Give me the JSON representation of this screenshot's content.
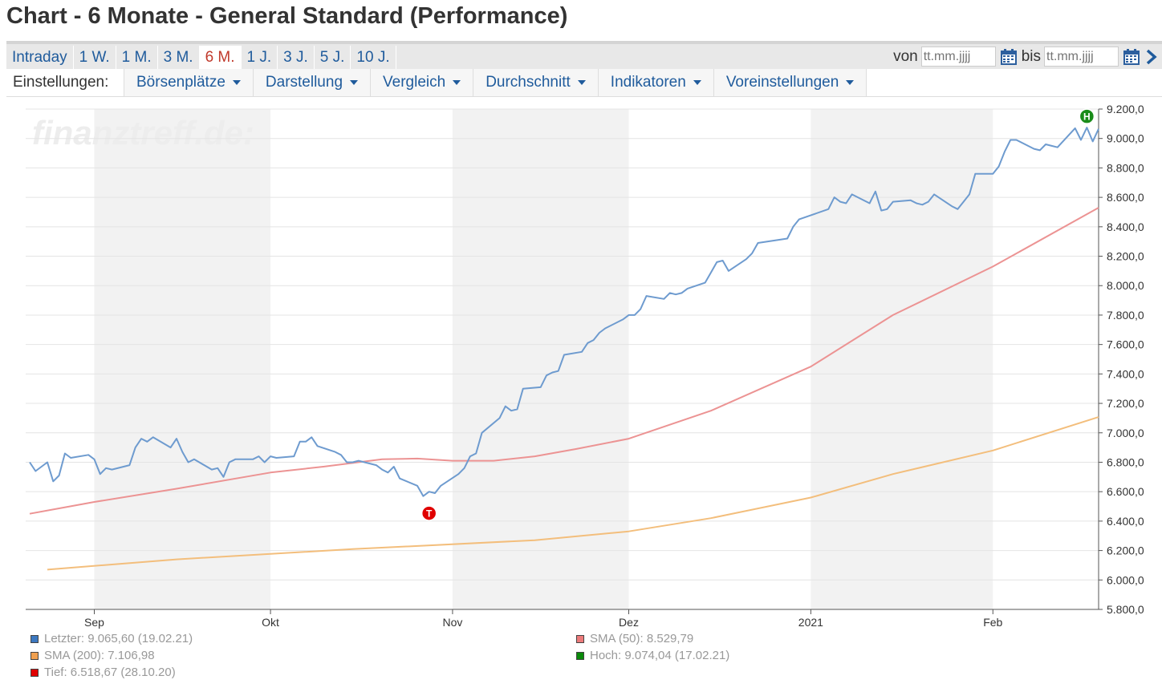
{
  "page": {
    "title": "Chart - 6 Monate - General Standard (Performance)"
  },
  "periods": {
    "tabs": [
      {
        "label": "Intraday",
        "active": false
      },
      {
        "label": "1 W.",
        "active": false
      },
      {
        "label": "1 M.",
        "active": false
      },
      {
        "label": "3 M.",
        "active": false
      },
      {
        "label": "6 M.",
        "active": true
      },
      {
        "label": "1 J.",
        "active": false
      },
      {
        "label": "3 J.",
        "active": false
      },
      {
        "label": "5 J.",
        "active": false
      },
      {
        "label": "10 J.",
        "active": false
      }
    ]
  },
  "date_range": {
    "from_label": "von",
    "from_placeholder": "tt.mm.jjjj",
    "to_label": "bis",
    "to_placeholder": "tt.mm.jjjj",
    "calendar_icon": "calendar-icon",
    "next_icon": "chevron-right-icon"
  },
  "settings": {
    "label": "Einstellungen:",
    "items": [
      "Börsenplätze",
      "Darstellung",
      "Vergleich",
      "Durchschnitt",
      "Indikatoren",
      "Voreinstellungen"
    ]
  },
  "chart_data": {
    "type": "line",
    "watermark": "finanztreff.de:",
    "x_range": [
      "2020-08-21",
      "2021-02-19"
    ],
    "ylim": [
      5800,
      9200
    ],
    "yticks": [
      5800,
      6000,
      6200,
      6400,
      6600,
      6800,
      7000,
      7200,
      7400,
      7600,
      7800,
      8000,
      8200,
      8400,
      8600,
      8800,
      9000,
      9200
    ],
    "ytick_labels": [
      "5.800,0",
      "6.000,0",
      "6.200,0",
      "6.400,0",
      "6.600,0",
      "6.800,0",
      "7.000,0",
      "7.200,0",
      "7.400,0",
      "7.600,0",
      "7.800,0",
      "8.000,0",
      "8.200,0",
      "8.400,0",
      "8.600,0",
      "8.800,0",
      "9.000,0",
      "9.200,0"
    ],
    "x_ticks": [
      {
        "date": "2020-09-01",
        "label": "Sep"
      },
      {
        "date": "2020-10-01",
        "label": "Okt"
      },
      {
        "date": "2020-11-01",
        "label": "Nov"
      },
      {
        "date": "2020-12-01",
        "label": "Dez"
      },
      {
        "date": "2021-01-01",
        "label": "2021"
      },
      {
        "date": "2021-02-01",
        "label": "Feb"
      }
    ],
    "shaded_months": [
      [
        "2020-09-01",
        "2020-10-01"
      ],
      [
        "2020-11-01",
        "2020-12-01"
      ],
      [
        "2021-01-01",
        "2021-02-01"
      ]
    ],
    "grid": true,
    "colors": {
      "price": "#6e9bcf",
      "sma50": "#ec9393",
      "sma200": "#f3be7c",
      "low": "#e00000",
      "high": "#1a8c1a",
      "shade": "#f2f2f2",
      "grid": "#e4e4e4"
    },
    "series": [
      {
        "name": "Letzter",
        "color": "#6e9bcf",
        "points": [
          [
            "2020-08-21",
            6800
          ],
          [
            "2020-08-22",
            6740
          ],
          [
            "2020-08-24",
            6800
          ],
          [
            "2020-08-25",
            6670
          ],
          [
            "2020-08-26",
            6710
          ],
          [
            "2020-08-27",
            6860
          ],
          [
            "2020-08-28",
            6830
          ],
          [
            "2020-08-31",
            6850
          ],
          [
            "2020-09-01",
            6820
          ],
          [
            "2020-09-02",
            6720
          ],
          [
            "2020-09-03",
            6760
          ],
          [
            "2020-09-04",
            6750
          ],
          [
            "2020-09-07",
            6780
          ],
          [
            "2020-09-08",
            6900
          ],
          [
            "2020-09-09",
            6960
          ],
          [
            "2020-09-10",
            6940
          ],
          [
            "2020-09-11",
            6970
          ],
          [
            "2020-09-14",
            6900
          ],
          [
            "2020-09-15",
            6960
          ],
          [
            "2020-09-16",
            6870
          ],
          [
            "2020-09-17",
            6800
          ],
          [
            "2020-09-18",
            6820
          ],
          [
            "2020-09-21",
            6750
          ],
          [
            "2020-09-22",
            6760
          ],
          [
            "2020-09-23",
            6700
          ],
          [
            "2020-09-24",
            6800
          ],
          [
            "2020-09-25",
            6820
          ],
          [
            "2020-09-28",
            6820
          ],
          [
            "2020-09-29",
            6840
          ],
          [
            "2020-09-30",
            6800
          ],
          [
            "2020-10-01",
            6840
          ],
          [
            "2020-10-02",
            6830
          ],
          [
            "2020-10-05",
            6840
          ],
          [
            "2020-10-06",
            6940
          ],
          [
            "2020-10-07",
            6940
          ],
          [
            "2020-10-08",
            6970
          ],
          [
            "2020-10-09",
            6910
          ],
          [
            "2020-10-12",
            6870
          ],
          [
            "2020-10-13",
            6850
          ],
          [
            "2020-10-14",
            6800
          ],
          [
            "2020-10-15",
            6800
          ],
          [
            "2020-10-16",
            6810
          ],
          [
            "2020-10-19",
            6780
          ],
          [
            "2020-10-20",
            6750
          ],
          [
            "2020-10-21",
            6730
          ],
          [
            "2020-10-22",
            6770
          ],
          [
            "2020-10-23",
            6690
          ],
          [
            "2020-10-26",
            6640
          ],
          [
            "2020-10-27",
            6570
          ],
          [
            "2020-10-28",
            6600
          ],
          [
            "2020-10-29",
            6590
          ],
          [
            "2020-10-30",
            6640
          ],
          [
            "2020-11-02",
            6720
          ],
          [
            "2020-11-03",
            6760
          ],
          [
            "2020-11-04",
            6840
          ],
          [
            "2020-11-05",
            6860
          ],
          [
            "2020-11-06",
            7000
          ],
          [
            "2020-11-09",
            7100
          ],
          [
            "2020-11-10",
            7180
          ],
          [
            "2020-11-11",
            7150
          ],
          [
            "2020-11-12",
            7160
          ],
          [
            "2020-11-13",
            7300
          ],
          [
            "2020-11-16",
            7310
          ],
          [
            "2020-11-17",
            7390
          ],
          [
            "2020-11-18",
            7410
          ],
          [
            "2020-11-19",
            7420
          ],
          [
            "2020-11-20",
            7530
          ],
          [
            "2020-11-23",
            7550
          ],
          [
            "2020-11-24",
            7610
          ],
          [
            "2020-11-25",
            7630
          ],
          [
            "2020-11-26",
            7680
          ],
          [
            "2020-11-27",
            7710
          ],
          [
            "2020-11-30",
            7770
          ],
          [
            "2020-12-01",
            7800
          ],
          [
            "2020-12-02",
            7800
          ],
          [
            "2020-12-03",
            7840
          ],
          [
            "2020-12-04",
            7930
          ],
          [
            "2020-12-07",
            7910
          ],
          [
            "2020-12-08",
            7950
          ],
          [
            "2020-12-09",
            7940
          ],
          [
            "2020-12-10",
            7950
          ],
          [
            "2020-12-11",
            7980
          ],
          [
            "2020-12-14",
            8020
          ],
          [
            "2020-12-15",
            8090
          ],
          [
            "2020-12-16",
            8160
          ],
          [
            "2020-12-17",
            8170
          ],
          [
            "2020-12-18",
            8100
          ],
          [
            "2020-12-21",
            8180
          ],
          [
            "2020-12-22",
            8220
          ],
          [
            "2020-12-23",
            8290
          ],
          [
            "2020-12-28",
            8320
          ],
          [
            "2020-12-29",
            8400
          ],
          [
            "2020-12-30",
            8450
          ],
          [
            "2021-01-04",
            8520
          ],
          [
            "2021-01-05",
            8600
          ],
          [
            "2021-01-06",
            8570
          ],
          [
            "2021-01-07",
            8560
          ],
          [
            "2021-01-08",
            8620
          ],
          [
            "2021-01-11",
            8560
          ],
          [
            "2021-01-12",
            8640
          ],
          [
            "2021-01-13",
            8510
          ],
          [
            "2021-01-14",
            8520
          ],
          [
            "2021-01-15",
            8570
          ],
          [
            "2021-01-18",
            8580
          ],
          [
            "2021-01-19",
            8560
          ],
          [
            "2021-01-20",
            8550
          ],
          [
            "2021-01-21",
            8570
          ],
          [
            "2021-01-22",
            8620
          ],
          [
            "2021-01-25",
            8540
          ],
          [
            "2021-01-26",
            8520
          ],
          [
            "2021-01-27",
            8570
          ],
          [
            "2021-01-28",
            8620
          ],
          [
            "2021-01-29",
            8760
          ],
          [
            "2021-02-01",
            8760
          ],
          [
            "2021-02-02",
            8810
          ],
          [
            "2021-02-03",
            8910
          ],
          [
            "2021-02-04",
            8990
          ],
          [
            "2021-02-05",
            8990
          ],
          [
            "2021-02-08",
            8930
          ],
          [
            "2021-02-09",
            8920
          ],
          [
            "2021-02-10",
            8960
          ],
          [
            "2021-02-11",
            8950
          ],
          [
            "2021-02-12",
            8940
          ],
          [
            "2021-02-15",
            9070
          ],
          [
            "2021-02-16",
            8990
          ],
          [
            "2021-02-17",
            9074.04
          ],
          [
            "2021-02-18",
            8980
          ],
          [
            "2021-02-19",
            9065.6
          ]
        ]
      },
      {
        "name": "SMA (50)",
        "color": "#ec9393",
        "points": [
          [
            "2020-08-21",
            6450
          ],
          [
            "2020-09-01",
            6530
          ],
          [
            "2020-09-15",
            6620
          ],
          [
            "2020-10-01",
            6730
          ],
          [
            "2020-10-10",
            6770
          ],
          [
            "2020-10-20",
            6820
          ],
          [
            "2020-10-26",
            6825
          ],
          [
            "2020-11-01",
            6810
          ],
          [
            "2020-11-08",
            6810
          ],
          [
            "2020-11-15",
            6840
          ],
          [
            "2020-11-22",
            6890
          ],
          [
            "2020-12-01",
            6960
          ],
          [
            "2020-12-15",
            7150
          ],
          [
            "2021-01-01",
            7450
          ],
          [
            "2021-01-15",
            7800
          ],
          [
            "2021-02-01",
            8130
          ],
          [
            "2021-02-19",
            8529.79
          ]
        ]
      },
      {
        "name": "SMA (200)",
        "color": "#f3be7c",
        "points": [
          [
            "2020-08-24",
            6070
          ],
          [
            "2020-09-15",
            6140
          ],
          [
            "2020-10-15",
            6210
          ],
          [
            "2020-11-15",
            6270
          ],
          [
            "2020-12-01",
            6330
          ],
          [
            "2020-12-15",
            6420
          ],
          [
            "2021-01-01",
            6560
          ],
          [
            "2021-01-15",
            6720
          ],
          [
            "2021-02-01",
            6880
          ],
          [
            "2021-02-19",
            7106.98
          ]
        ]
      }
    ],
    "markers": [
      {
        "label": "T",
        "date": "2020-10-28",
        "value": 6518.67,
        "color": "#e00000"
      },
      {
        "label": "H",
        "date": "2021-02-17",
        "value": 9074.04,
        "color": "#1a8c1a"
      }
    ]
  },
  "legend": {
    "left": [
      {
        "text": "Letzter: 9.065,60 (19.02.21)",
        "color": "#3c78c0"
      },
      {
        "text": "SMA (200): 7.106,98",
        "color": "#f0a050"
      },
      {
        "text": "Tief: 6.518,67 (28.10.20)",
        "color": "#e00000"
      }
    ],
    "right": [
      {
        "text": "SMA (50): 8.529,79",
        "color": "#ec7a7a"
      },
      {
        "text": "Hoch: 9.074,04 (17.02.21)",
        "color": "#0a8a0a"
      }
    ]
  }
}
